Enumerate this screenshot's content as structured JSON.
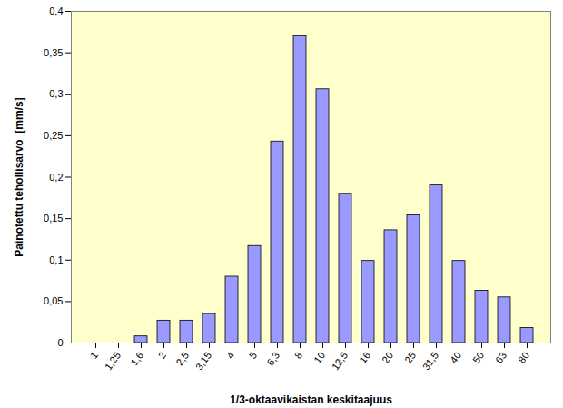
{
  "chart_data": {
    "type": "bar",
    "x_label": "1/3-oktaavikaistan keskitaajuus",
    "y_label": "Painotettu tehollisarvo  [mm/s]",
    "categories": [
      "1",
      "1,25",
      "1,6",
      "2",
      "2,5",
      "3,15",
      "4",
      "5",
      "6,3",
      "8",
      "10",
      "12,5",
      "16",
      "20",
      "25",
      "31,5",
      "40",
      "50",
      "63",
      "80"
    ],
    "values": [
      0,
      0,
      0.008,
      0.027,
      0.027,
      0.035,
      0.08,
      0.117,
      0.243,
      0.37,
      0.306,
      0.18,
      0.099,
      0.136,
      0.154,
      0.19,
      0.099,
      0.063,
      0.055,
      0.018
    ],
    "color": "#9999ff",
    "ylim": [
      0,
      0.4
    ],
    "yticks": [
      0,
      {
        "value": 0.05,
        "label": "0,05"
      },
      {
        "value": 0.1,
        "label": "0,1"
      },
      {
        "value": 0.15,
        "label": "0,15"
      },
      {
        "value": 0.2,
        "label": "0,2"
      },
      {
        "value": 0.25,
        "label": "0,25"
      },
      {
        "value": 0.3,
        "label": "0,3"
      },
      {
        "value": 0.35,
        "label": "0,35"
      },
      {
        "value": 0.4,
        "label": "0,4"
      }
    ],
    "grid": false
  }
}
